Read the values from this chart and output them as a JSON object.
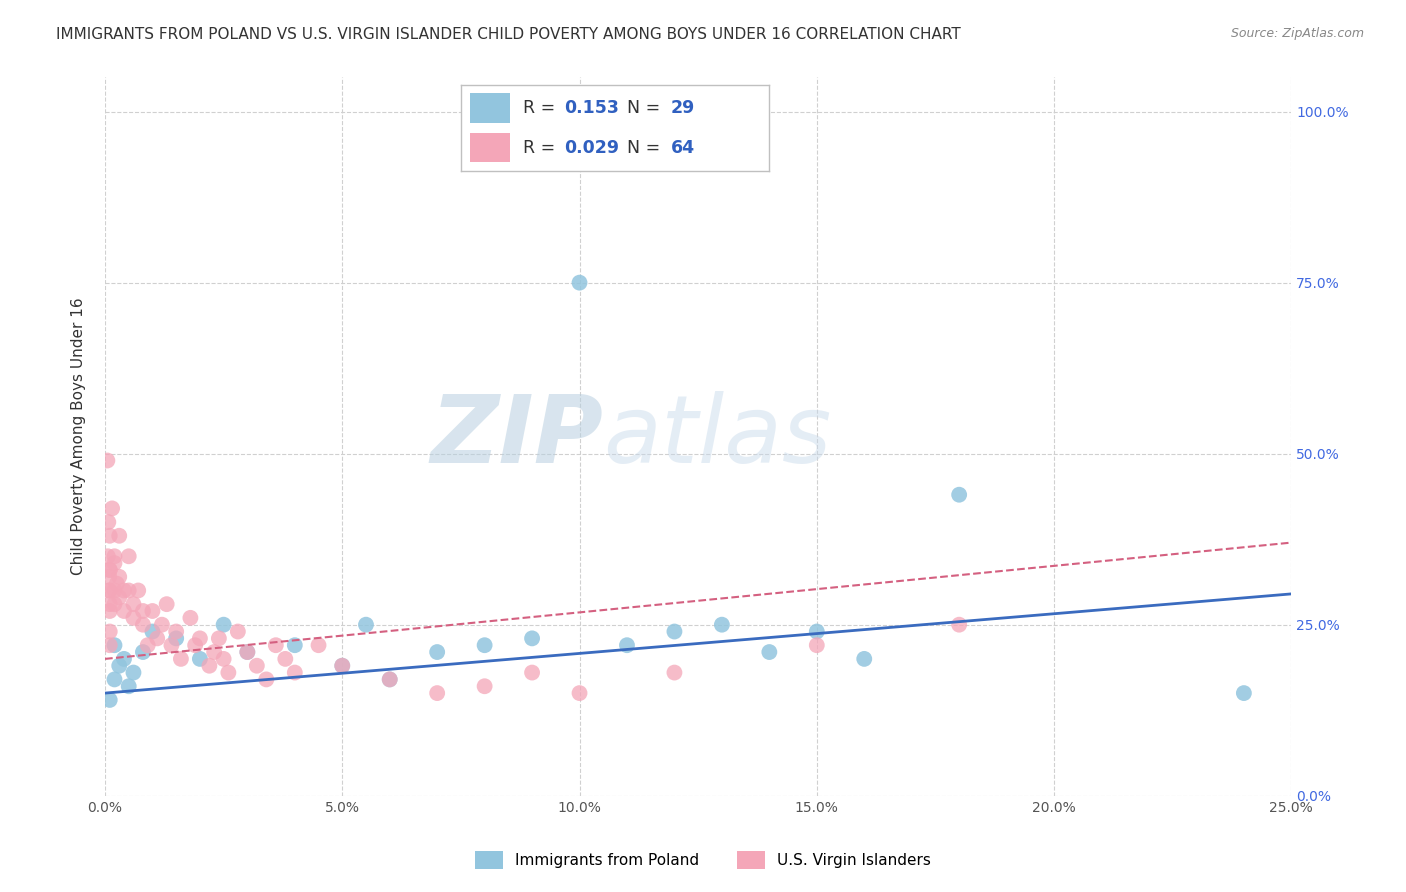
{
  "title": "IMMIGRANTS FROM POLAND VS U.S. VIRGIN ISLANDER CHILD POVERTY AMONG BOYS UNDER 16 CORRELATION CHART",
  "source": "Source: ZipAtlas.com",
  "ylabel": "Child Poverty Among Boys Under 16",
  "xlabel_blue": "Immigrants from Poland",
  "xlabel_pink": "U.S. Virgin Islanders",
  "watermark_zip": "ZIP",
  "watermark_atlas": "atlas",
  "blue_R": 0.153,
  "blue_N": 29,
  "pink_R": 0.029,
  "pink_N": 64,
  "blue_color": "#92c5de",
  "pink_color": "#f4a6b8",
  "trend_blue": "#3a6bbf",
  "trend_pink": "#d46080",
  "xlim": [
    0.0,
    0.25
  ],
  "ylim": [
    0.0,
    1.05
  ],
  "yticks": [
    0.0,
    0.25,
    0.5,
    0.75,
    1.0
  ],
  "xticks": [
    0.0,
    0.05,
    0.1,
    0.15,
    0.2,
    0.25
  ],
  "blue_x": [
    0.001,
    0.002,
    0.002,
    0.003,
    0.004,
    0.005,
    0.006,
    0.008,
    0.01,
    0.015,
    0.02,
    0.025,
    0.03,
    0.04,
    0.05,
    0.055,
    0.06,
    0.07,
    0.08,
    0.09,
    0.1,
    0.11,
    0.12,
    0.13,
    0.14,
    0.15,
    0.16,
    0.18,
    0.24
  ],
  "blue_y": [
    0.14,
    0.17,
    0.22,
    0.19,
    0.2,
    0.16,
    0.18,
    0.21,
    0.24,
    0.23,
    0.2,
    0.25,
    0.21,
    0.22,
    0.19,
    0.25,
    0.17,
    0.21,
    0.22,
    0.23,
    0.75,
    0.22,
    0.24,
    0.25,
    0.21,
    0.24,
    0.2,
    0.44,
    0.15
  ],
  "pink_x": [
    0.0005,
    0.0006,
    0.0007,
    0.0008,
    0.0009,
    0.001,
    0.001,
    0.001,
    0.001,
    0.001,
    0.001,
    0.001,
    0.001,
    0.0015,
    0.002,
    0.002,
    0.002,
    0.002,
    0.0025,
    0.003,
    0.003,
    0.003,
    0.004,
    0.004,
    0.005,
    0.005,
    0.006,
    0.006,
    0.007,
    0.008,
    0.008,
    0.009,
    0.01,
    0.011,
    0.012,
    0.013,
    0.014,
    0.015,
    0.016,
    0.018,
    0.019,
    0.02,
    0.022,
    0.023,
    0.024,
    0.025,
    0.026,
    0.028,
    0.03,
    0.032,
    0.034,
    0.036,
    0.038,
    0.04,
    0.045,
    0.05,
    0.06,
    0.07,
    0.08,
    0.09,
    0.1,
    0.12,
    0.15,
    0.18
  ],
  "pink_y": [
    0.49,
    0.35,
    0.4,
    0.3,
    0.32,
    0.38,
    0.33,
    0.28,
    0.3,
    0.27,
    0.24,
    0.33,
    0.22,
    0.42,
    0.35,
    0.3,
    0.28,
    0.34,
    0.31,
    0.38,
    0.32,
    0.29,
    0.3,
    0.27,
    0.35,
    0.3,
    0.28,
    0.26,
    0.3,
    0.27,
    0.25,
    0.22,
    0.27,
    0.23,
    0.25,
    0.28,
    0.22,
    0.24,
    0.2,
    0.26,
    0.22,
    0.23,
    0.19,
    0.21,
    0.23,
    0.2,
    0.18,
    0.24,
    0.21,
    0.19,
    0.17,
    0.22,
    0.2,
    0.18,
    0.22,
    0.19,
    0.17,
    0.15,
    0.16,
    0.18,
    0.15,
    0.18,
    0.22,
    0.25
  ]
}
